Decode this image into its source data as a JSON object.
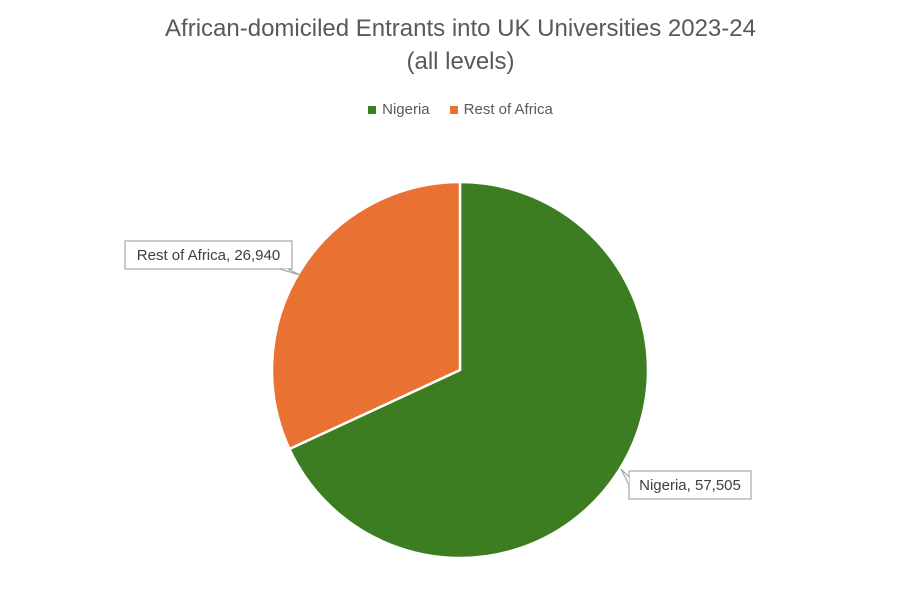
{
  "chart_data": {
    "type": "pie",
    "title_line1": "African-domiciled Entrants into UK Universities 2023-24",
    "title_line2": "(all levels)",
    "categories": [
      "Nigeria",
      "Rest of Africa"
    ],
    "values": [
      57505,
      26940
    ],
    "colors": [
      "#3c7d22",
      "#e97132"
    ],
    "legend_position": "top",
    "data_labels": [
      "Nigeria, 57,505",
      "Rest of Africa, 26,940"
    ]
  }
}
